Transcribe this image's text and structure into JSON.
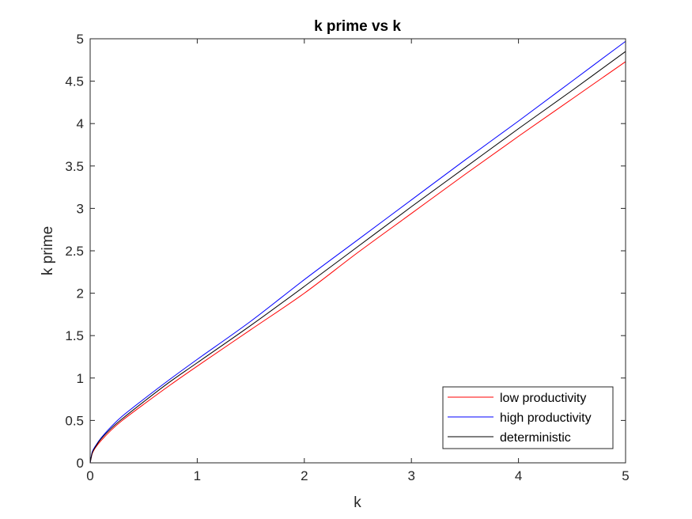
{
  "chart_data": {
    "type": "line",
    "title": "k prime vs k",
    "xlabel": "k",
    "ylabel": "k prime",
    "xlim": [
      0,
      5
    ],
    "ylim": [
      0,
      5
    ],
    "xticks": [
      "0",
      "1",
      "2",
      "3",
      "4",
      "5"
    ],
    "yticks": [
      "0",
      "0.5",
      "1",
      "1.5",
      "2",
      "2.5",
      "3",
      "3.5",
      "4",
      "4.5",
      "5"
    ],
    "grid": false,
    "legend_position": "bottom-right",
    "x": [
      0.0,
      0.02,
      0.05,
      0.1,
      0.2,
      0.3,
      0.5,
      0.75,
      1.0,
      1.5,
      2.0,
      2.5,
      3.0,
      3.5,
      4.0,
      4.5,
      5.0
    ],
    "series": [
      {
        "name": "low productivity",
        "color": "#ff0000",
        "values": [
          0.0,
          0.11,
          0.18,
          0.26,
          0.39,
          0.5,
          0.69,
          0.92,
          1.14,
          1.57,
          2.0,
          2.48,
          2.94,
          3.4,
          3.85,
          4.29,
          4.73
        ]
      },
      {
        "name": "high productivity",
        "color": "#0000ff",
        "values": [
          0.0,
          0.13,
          0.2,
          0.29,
          0.43,
          0.55,
          0.75,
          0.99,
          1.22,
          1.67,
          2.16,
          2.63,
          3.1,
          3.57,
          4.03,
          4.5,
          4.97
        ]
      },
      {
        "name": "deterministic",
        "color": "#000000",
        "values": [
          0.0,
          0.12,
          0.19,
          0.28,
          0.41,
          0.52,
          0.72,
          0.96,
          1.18,
          1.62,
          2.08,
          2.55,
          3.02,
          3.48,
          3.94,
          4.39,
          4.85
        ]
      }
    ]
  }
}
